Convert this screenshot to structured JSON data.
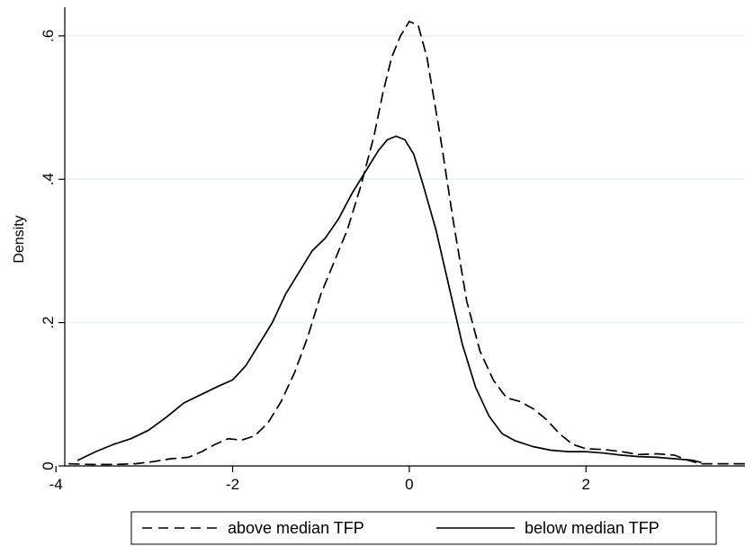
{
  "chart_data": {
    "type": "line",
    "title": "",
    "xlabel": "",
    "ylabel": "Density",
    "xlim": [
      -3.9,
      3.8
    ],
    "ylim": [
      0,
      0.64
    ],
    "grid": true,
    "legend_position": "bottom",
    "x_ticks": [
      {
        "value": -4,
        "label": "-4"
      },
      {
        "value": -2,
        "label": "-2"
      },
      {
        "value": 0,
        "label": "0"
      },
      {
        "value": 2,
        "label": "2"
      }
    ],
    "y_ticks": [
      {
        "value": 0,
        "label": "0"
      },
      {
        "value": 0.2,
        "label": ".2"
      },
      {
        "value": 0.4,
        "label": ".4"
      },
      {
        "value": 0.6,
        "label": ".6"
      }
    ],
    "series": [
      {
        "name": "above median TFP",
        "line_style": "dashed",
        "color": "#000000",
        "x": [
          -3.85,
          -3.6,
          -3.35,
          -3.1,
          -2.9,
          -2.7,
          -2.5,
          -2.35,
          -2.2,
          -2.05,
          -1.9,
          -1.75,
          -1.6,
          -1.45,
          -1.3,
          -1.15,
          -1.0,
          -0.85,
          -0.7,
          -0.55,
          -0.4,
          -0.3,
          -0.2,
          -0.1,
          0.0,
          0.1,
          0.2,
          0.35,
          0.5,
          0.65,
          0.8,
          0.95,
          1.1,
          1.25,
          1.4,
          1.55,
          1.7,
          1.85,
          2.0,
          2.2,
          2.4,
          2.6,
          2.8,
          3.0,
          3.15,
          3.3,
          3.5,
          3.8
        ],
        "y": [
          0.003,
          0.002,
          0.002,
          0.003,
          0.006,
          0.01,
          0.012,
          0.02,
          0.03,
          0.038,
          0.036,
          0.042,
          0.06,
          0.09,
          0.13,
          0.18,
          0.24,
          0.285,
          0.33,
          0.39,
          0.46,
          0.52,
          0.57,
          0.6,
          0.62,
          0.615,
          0.57,
          0.46,
          0.34,
          0.23,
          0.16,
          0.12,
          0.095,
          0.09,
          0.08,
          0.065,
          0.045,
          0.03,
          0.024,
          0.023,
          0.02,
          0.016,
          0.017,
          0.015,
          0.008,
          0.003,
          0.003,
          0.003
        ]
      },
      {
        "name": "below median TFP",
        "line_style": "solid",
        "color": "#000000",
        "x": [
          -3.75,
          -3.55,
          -3.35,
          -3.15,
          -2.95,
          -2.75,
          -2.55,
          -2.35,
          -2.15,
          -2.0,
          -1.85,
          -1.7,
          -1.55,
          -1.4,
          -1.25,
          -1.1,
          -0.95,
          -0.8,
          -0.65,
          -0.5,
          -0.35,
          -0.25,
          -0.15,
          -0.05,
          0.05,
          0.15,
          0.3,
          0.45,
          0.6,
          0.75,
          0.9,
          1.05,
          1.2,
          1.4,
          1.6,
          1.8,
          2.0,
          2.2,
          2.4,
          2.6,
          2.8,
          3.0,
          3.2,
          3.3
        ],
        "y": [
          0.008,
          0.02,
          0.03,
          0.038,
          0.05,
          0.068,
          0.088,
          0.1,
          0.112,
          0.12,
          0.14,
          0.17,
          0.2,
          0.24,
          0.27,
          0.3,
          0.318,
          0.345,
          0.38,
          0.41,
          0.44,
          0.455,
          0.46,
          0.455,
          0.435,
          0.395,
          0.33,
          0.25,
          0.17,
          0.11,
          0.07,
          0.045,
          0.035,
          0.027,
          0.022,
          0.02,
          0.02,
          0.018,
          0.015,
          0.013,
          0.012,
          0.01,
          0.008,
          0.005
        ]
      }
    ]
  }
}
